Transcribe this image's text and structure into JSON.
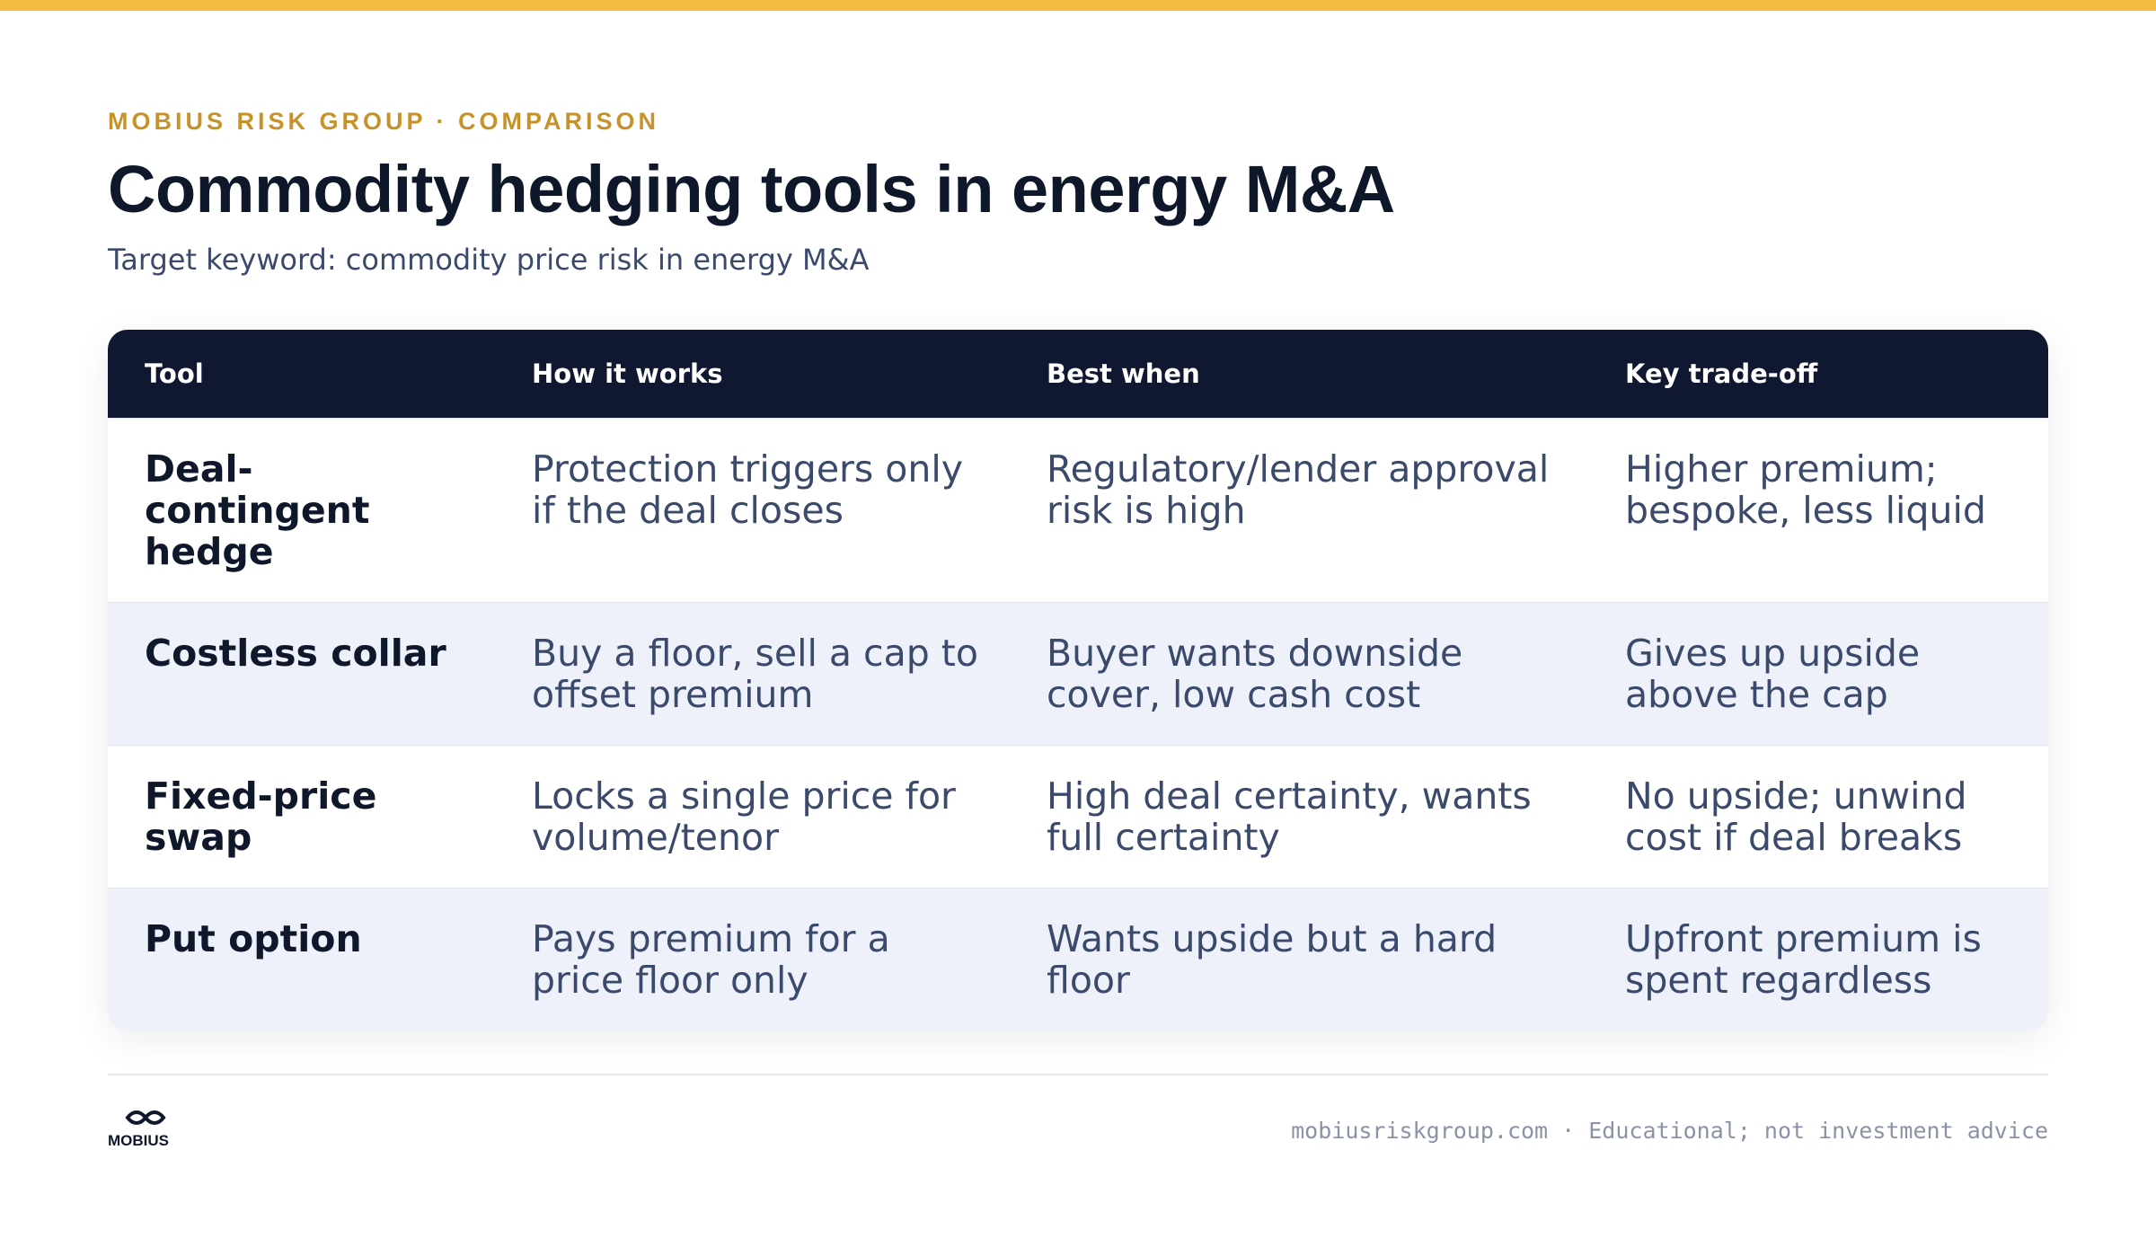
{
  "header": {
    "eyebrow": "MOBIUS RISK GROUP · COMPARISON",
    "title": "Commodity hedging tools in energy M&A",
    "subtitle": "Target keyword: commodity price risk in energy M&A"
  },
  "table": {
    "columns": [
      "Tool",
      "How it works",
      "Best when",
      "Key trade-off"
    ],
    "rows": [
      [
        "Deal-contingent hedge",
        "Protection triggers only if the deal closes",
        "Regulatory/lender approval risk is high",
        "Higher premium; bespoke, less liquid"
      ],
      [
        "Costless collar",
        "Buy a floor, sell a cap to offset premium",
        "Buyer wants downside cover, low cash cost",
        "Gives up upside above the cap"
      ],
      [
        "Fixed-price swap",
        "Locks a single price for volume/tenor",
        "High deal certainty, wants full certainty",
        "No upside; unwind cost if deal breaks"
      ],
      [
        "Put option",
        "Pays premium for a price floor only",
        "Wants upside but a hard floor",
        "Upfront premium is spent regardless"
      ]
    ]
  },
  "footer": {
    "logo": "MOBIUS",
    "note": "mobiusriskgroup.com · Educational; not investment advice"
  }
}
